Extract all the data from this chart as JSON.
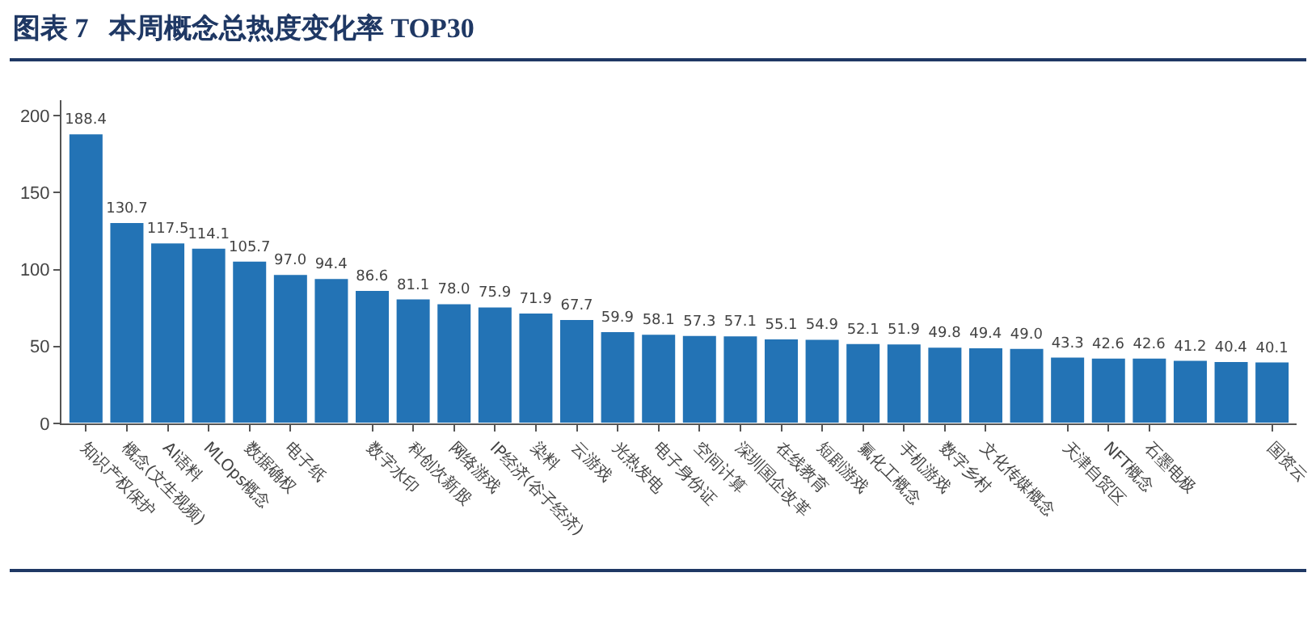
{
  "chart_data": {
    "type": "bar",
    "title": "图表 7   本周概念总热度变化率 TOP30",
    "categories": [
      "知识产权保护",
      "概念(文生视频)",
      "AI语料",
      "MLOps概念",
      "数据确权",
      "电子纸",
      null,
      "数字水印",
      "科创次新股",
      "网络游戏",
      "IP经济(谷子经济)",
      "染料",
      "云游戏",
      "光热发电",
      "电子身份证",
      "空间计算",
      "深圳国企改革",
      "在线教育",
      "短剧游戏",
      "氟化工概念",
      "手机游戏",
      "数字乡村",
      "文化传媒概念",
      null,
      "天津自贸区",
      "NFT概念",
      "石墨电极",
      null,
      null,
      "国资云"
    ],
    "values": [
      188.4,
      130.7,
      117.5,
      114.1,
      105.7,
      97.0,
      94.4,
      86.6,
      81.1,
      78.0,
      75.9,
      71.9,
      67.7,
      59.9,
      58.1,
      57.3,
      57.1,
      55.1,
      54.9,
      52.1,
      51.9,
      49.8,
      49.4,
      49.0,
      43.3,
      42.6,
      42.6,
      41.2,
      40.4,
      40.1
    ],
    "value_labels": [
      "188.4",
      "130.7",
      "117.5",
      "114.1",
      "105.7",
      "97.0",
      "94.4",
      "86.6",
      "81.1",
      "78.0",
      "75.9",
      "71.9",
      "67.7",
      "59.9",
      "58.1",
      "57.3",
      "57.1",
      "55.1",
      "54.9",
      "52.1",
      "51.9",
      "49.8",
      "49.4",
      "49.0",
      "43.3",
      "42.6",
      "42.6",
      "41.2",
      "40.4",
      "40.1"
    ],
    "color": "#2373b5",
    "ylim": [
      0,
      210
    ],
    "yticks": [
      0,
      50,
      100,
      150,
      200
    ],
    "grid": false
  }
}
